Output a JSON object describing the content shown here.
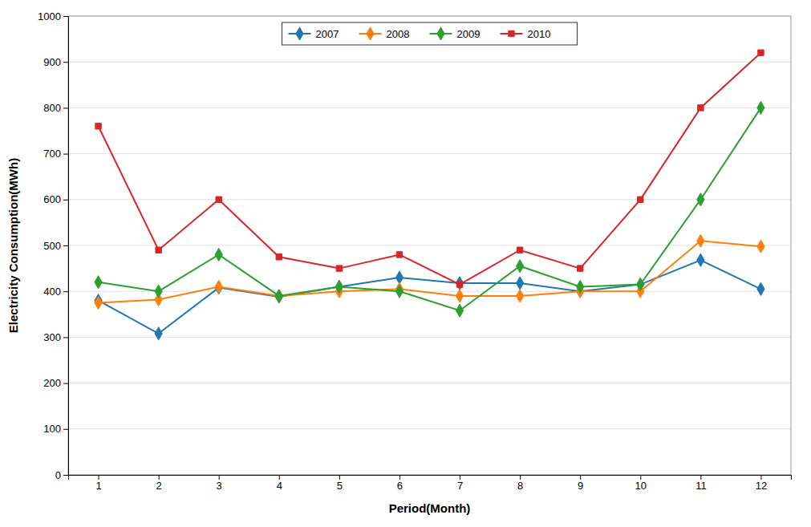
{
  "chart_data": {
    "type": "line",
    "xlabel": "Period(Month)",
    "ylabel": "Electricity Consumption(MWh)",
    "x": [
      1,
      2,
      3,
      4,
      5,
      6,
      7,
      8,
      9,
      10,
      11,
      12
    ],
    "series": [
      {
        "name": "2007",
        "marker": "diamond",
        "values": [
          380,
          308,
          408,
          388,
          410,
          430,
          418,
          418,
          400,
          415,
          468,
          405
        ]
      },
      {
        "name": "2008",
        "marker": "diamond",
        "values": [
          375,
          382,
          410,
          390,
          400,
          405,
          390,
          390,
          400,
          400,
          510,
          498
        ]
      },
      {
        "name": "2009",
        "marker": "diamond",
        "values": [
          420,
          400,
          480,
          390,
          410,
          400,
          358,
          455,
          410,
          415,
          600,
          800
        ]
      },
      {
        "name": "2010",
        "marker": "square",
        "values": [
          760,
          490,
          600,
          475,
          450,
          480,
          415,
          490,
          450,
          600,
          800,
          920
        ]
      }
    ],
    "xlim": [
      0.5,
      12.5
    ],
    "xticks": [
      1,
      2,
      3,
      4,
      5,
      6,
      7,
      8,
      9,
      10,
      11,
      12
    ],
    "ylim": [
      0,
      1000
    ],
    "yticks": [
      0,
      100,
      200,
      300,
      400,
      500,
      600,
      700,
      800,
      900,
      1000
    ],
    "grid": true,
    "legend": "top"
  }
}
